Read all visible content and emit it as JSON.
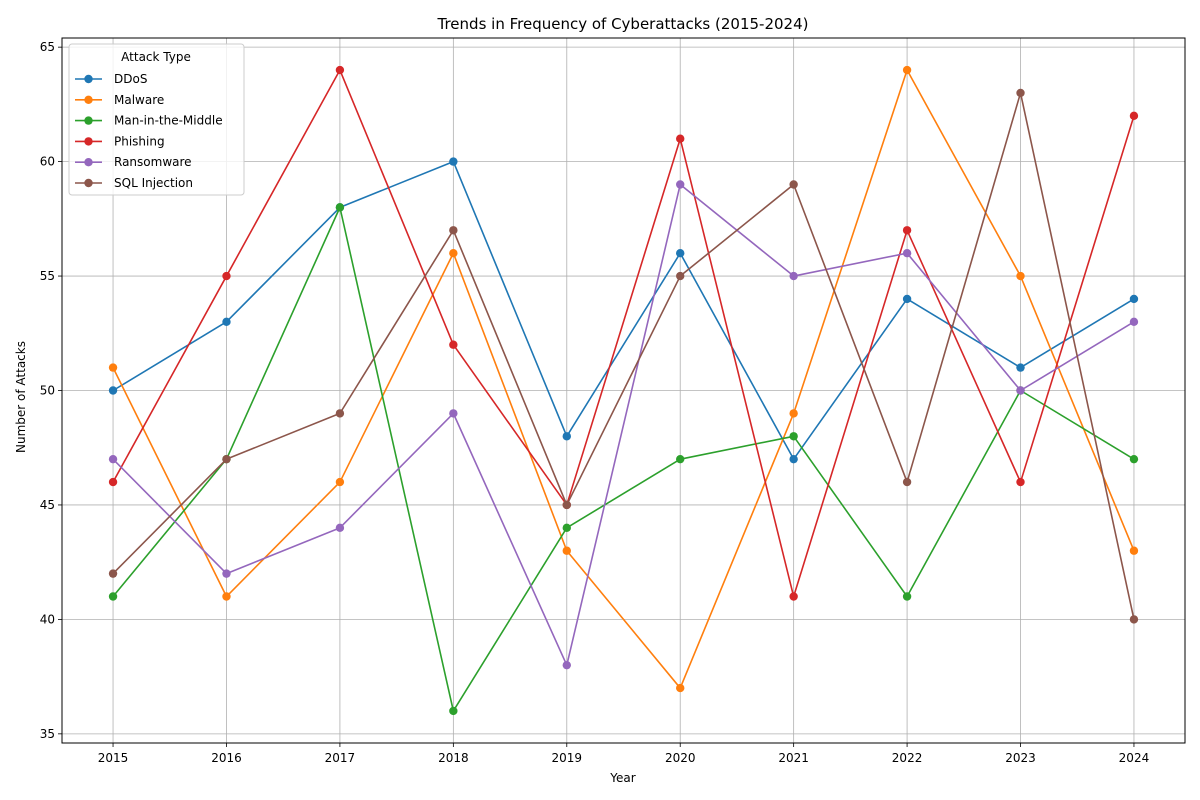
{
  "chart_data": {
    "type": "line",
    "title": "Trends in Frequency of Cyberattacks (2015-2024)",
    "xlabel": "Year",
    "ylabel": "Number of Attacks",
    "x": [
      2015,
      2016,
      2017,
      2018,
      2019,
      2020,
      2021,
      2022,
      2023,
      2024
    ],
    "xlim": [
      2014.55,
      2024.45
    ],
    "ylim": [
      34.6,
      65.4
    ],
    "yticks": [
      35,
      40,
      45,
      50,
      55,
      60,
      65
    ],
    "grid": true,
    "legend": {
      "title": "Attack Type",
      "placement": "top-left"
    },
    "series": [
      {
        "name": "DDoS",
        "color": "#1f77b4",
        "values": [
          50,
          53,
          58,
          60,
          48,
          56,
          47,
          54,
          51,
          54
        ]
      },
      {
        "name": "Malware",
        "color": "#ff7f0e",
        "values": [
          51,
          41,
          46,
          56,
          43,
          37,
          49,
          64,
          55,
          43
        ]
      },
      {
        "name": "Man-in-the-Middle",
        "color": "#2ca02c",
        "values": [
          41,
          47,
          58,
          36,
          44,
          47,
          48,
          41,
          50,
          47
        ]
      },
      {
        "name": "Phishing",
        "color": "#d62728",
        "values": [
          46,
          55,
          64,
          52,
          45,
          61,
          41,
          57,
          46,
          62
        ]
      },
      {
        "name": "Ransomware",
        "color": "#9467bd",
        "values": [
          47,
          42,
          44,
          49,
          38,
          59,
          55,
          56,
          50,
          53
        ]
      },
      {
        "name": "SQL Injection",
        "color": "#8c564b",
        "values": [
          42,
          47,
          49,
          57,
          45,
          55,
          59,
          46,
          63,
          40
        ]
      }
    ]
  }
}
